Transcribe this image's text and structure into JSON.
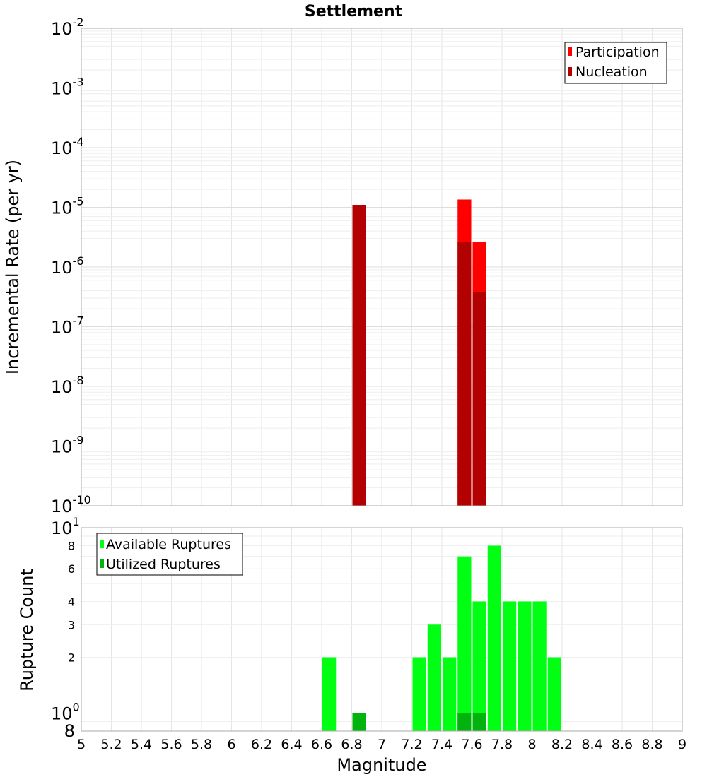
{
  "chart_data": [
    {
      "type": "bar",
      "title": "Settlement",
      "xlabel": "",
      "ylabel": "Incremental Rate (per yr)",
      "xlim": [
        5,
        9
      ],
      "ylim": [
        1e-10,
        0.01
      ],
      "yscale": "log",
      "grid": true,
      "legend_placement": "top-right",
      "bar_width": 0.1,
      "y_tick_exponents": [
        -10,
        -9,
        -8,
        -7,
        -6,
        -5,
        -4,
        -3,
        -2
      ],
      "series": [
        {
          "name": "Participation",
          "color": "#ff0000",
          "x": [
            6.85,
            7.55,
            7.65
          ],
          "values": [
            1.1e-05,
            1.35e-05,
            2.6e-06
          ]
        },
        {
          "name": "Nucleation",
          "color": "#b30000",
          "x": [
            6.85,
            7.55,
            7.65
          ],
          "values": [
            1.1e-05,
            2.6e-06,
            3.8e-07
          ]
        }
      ]
    },
    {
      "type": "bar",
      "title": "",
      "xlabel": "Magnitude",
      "ylabel": "Rupture Count",
      "xlim": [
        5,
        9
      ],
      "ylim": [
        0.8,
        10
      ],
      "yscale": "log",
      "grid": true,
      "legend_placement": "top-left",
      "bar_width": 0.1,
      "x_ticks": [
        "5",
        "5.2",
        "5.4",
        "5.6",
        "5.8",
        "6",
        "6.2",
        "6.4",
        "6.6",
        "6.8",
        "7",
        "7.2",
        "7.4",
        "7.6",
        "7.8",
        "8",
        "8.2",
        "8.4",
        "8.6",
        "8.8",
        "9"
      ],
      "y_minor_ticks": [
        "2",
        "3",
        "4",
        "6",
        "8"
      ],
      "y_bottom_label": "8",
      "series": [
        {
          "name": "Available Ruptures",
          "color": "#00ff13",
          "x": [
            6.65,
            7.25,
            7.35,
            7.45,
            7.55,
            7.65,
            7.75,
            7.85,
            7.95,
            8.05,
            8.15
          ],
          "values": [
            2,
            2,
            3,
            2,
            7,
            4,
            8,
            4,
            4,
            4,
            2
          ]
        },
        {
          "name": "Utilized Ruptures",
          "color": "#00b30d",
          "x": [
            6.85,
            7.55,
            7.65
          ],
          "values": [
            1,
            1,
            1
          ]
        }
      ]
    }
  ]
}
